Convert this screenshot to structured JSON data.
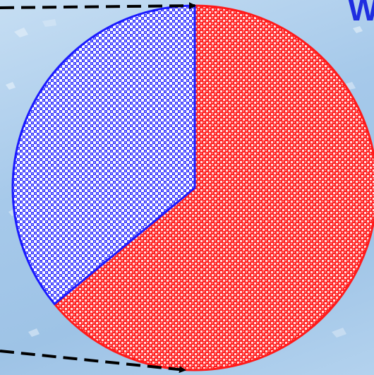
{
  "page": {
    "corner_text": "W"
  },
  "chart_data": {
    "type": "pie",
    "title": "",
    "slices": [
      {
        "name": "",
        "value": 64,
        "color": "#ff1a1a",
        "pattern": "red-checker"
      },
      {
        "name": "",
        "value": 36,
        "color": "#1a1aff",
        "pattern": "blue-checker"
      }
    ],
    "start_angle_deg": 0,
    "direction": "clockwise"
  }
}
